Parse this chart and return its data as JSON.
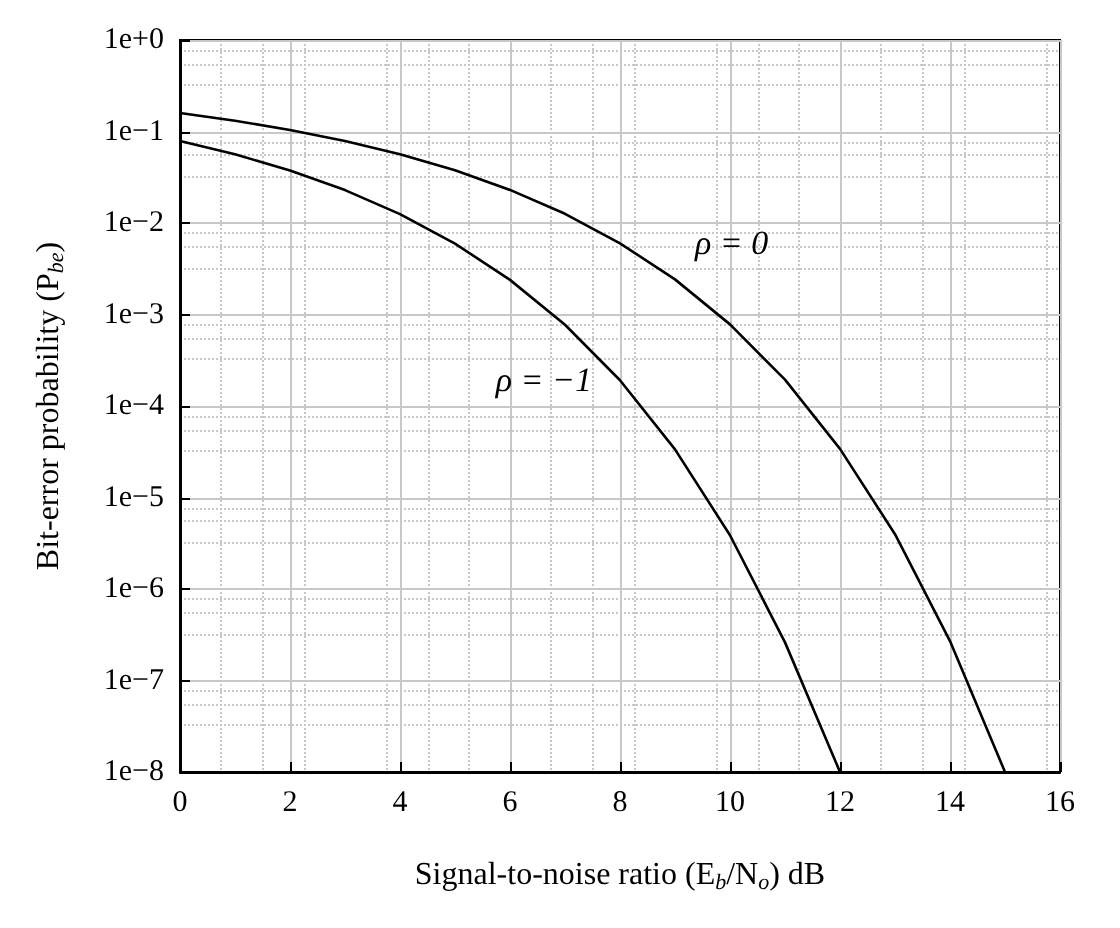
{
  "chart_data": {
    "type": "line",
    "xlabel": "Signal-to-noise ratio (E$_{b}$/N$_{o}$) dB",
    "ylabel": "Bit-error probability (P$_{be}$)",
    "log": "y",
    "grid": true,
    "marker": "none",
    "line_style": "solid",
    "xlim": [
      0,
      16
    ],
    "xticks": [
      0,
      2,
      4,
      6,
      8,
      10,
      12,
      14,
      16
    ],
    "ylim": [
      1e-08,
      1
    ],
    "yticks": [
      {
        "value": 1e-08,
        "label": "1e−8"
      },
      {
        "value": 1e-07,
        "label": "1e−7"
      },
      {
        "value": 1e-06,
        "label": "1e−6"
      },
      {
        "value": 1e-05,
        "label": "1e−5"
      },
      {
        "value": 0.0001,
        "label": "1e−4"
      },
      {
        "value": 0.001,
        "label": "1e−3"
      },
      {
        "value": 0.01,
        "label": "1e−2"
      },
      {
        "value": 0.1,
        "label": "1e−1"
      },
      {
        "value": 1,
        "label": "1e+0"
      }
    ],
    "series": [
      {
        "color": "#000000",
        "x": [
          0,
          1,
          2,
          3,
          4,
          5,
          6,
          7,
          8,
          9,
          10,
          11,
          12,
          13,
          14,
          15
        ],
        "values": [
          0.159,
          0.131,
          0.104,
          0.0789,
          0.0565,
          0.0377,
          0.023,
          0.0126,
          0.006,
          0.00242,
          0.00078,
          0.000194,
          3.4e-05,
          3.97e-06,
          2.7e-07,
          1e-08
        ]
      },
      {
        "color": "#000000",
        "x": [
          0,
          1,
          2,
          3,
          4,
          5,
          6,
          7,
          8,
          9,
          10,
          11,
          12
        ],
        "values": [
          0.0786,
          0.0563,
          0.0375,
          0.0229,
          0.0125,
          0.00595,
          0.00239,
          0.000773,
          0.000191,
          3.36e-05,
          3.87e-06,
          2.61e-07,
          1e-08
        ]
      }
    ],
    "annotations": [
      {
        "text": "ρ = 0",
        "x": 9,
        "y": 0.00242
      },
      {
        "text": "ρ = −1",
        "x": 8,
        "y": 0.000191
      }
    ]
  }
}
